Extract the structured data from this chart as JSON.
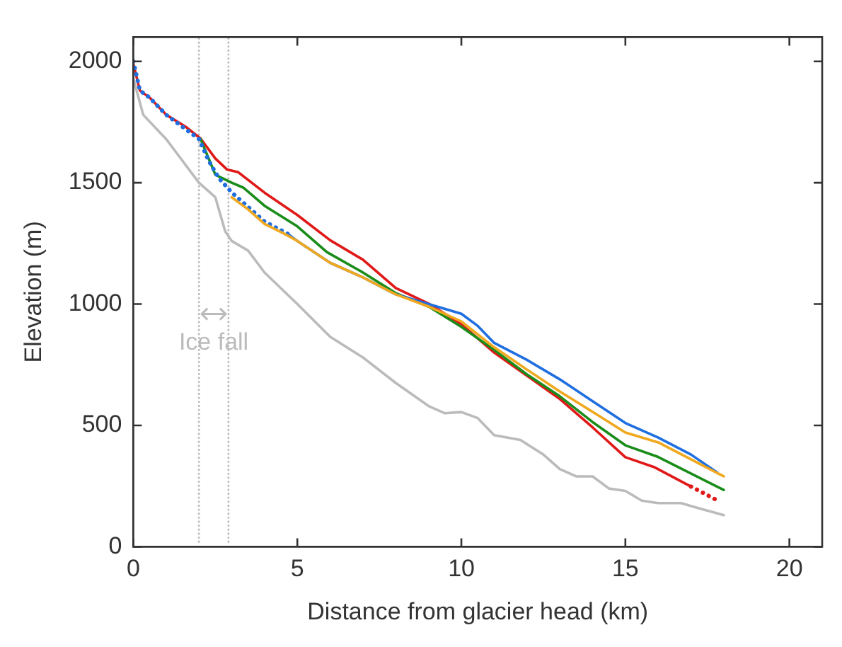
{
  "chart_data": {
    "type": "line",
    "xlabel": "Distance from glacier head (km)",
    "ylabel": "Elevation (m)",
    "xlim": [
      0,
      21
    ],
    "xticks": [
      0,
      5,
      10,
      15,
      20
    ],
    "ylim": [
      0,
      2100
    ],
    "yticks": [
      0,
      500,
      1000,
      1500,
      2000
    ],
    "grid": false,
    "legend": false,
    "marker": "none",
    "ref_lines": [
      {
        "axis": "x",
        "value": 2,
        "color": "#bbbbbb",
        "line_style": "dotted"
      },
      {
        "axis": "x",
        "value": 2.9,
        "color": "#bbbbbb",
        "line_style": "dotted"
      }
    ],
    "annotations": [
      "Ice fall"
    ],
    "series": [
      {
        "color": "#bbbbbb",
        "line_style": "solid",
        "x": [
          0,
          0.3,
          1,
          2,
          2.5,
          2.8,
          3,
          3.5,
          4,
          5,
          6,
          7,
          8,
          9,
          9.5,
          10,
          10.5,
          11,
          11.8,
          12.5,
          13,
          13.5,
          14,
          14.5,
          15,
          15.5,
          16,
          16.7,
          17.2,
          18
        ],
        "values": [
          1930,
          1780,
          1680,
          1500,
          1440,
          1300,
          1260,
          1220,
          1130,
          1000,
          865,
          780,
          675,
          580,
          550,
          555,
          530,
          460,
          440,
          380,
          320,
          290,
          290,
          240,
          230,
          190,
          180,
          180,
          160,
          130
        ]
      },
      {
        "color": "#f0a81e",
        "line_style": "solid",
        "x": [
          3,
          3.5,
          4,
          4.6,
          5,
          6,
          7,
          8,
          9,
          10,
          11,
          12,
          13,
          14,
          15,
          16,
          17,
          18
        ],
        "values": [
          1440,
          1390,
          1330,
          1290,
          1260,
          1170,
          1110,
          1040,
          990,
          928,
          822,
          730,
          640,
          556,
          471,
          430,
          360,
          290
        ]
      },
      {
        "color": "#1f6fe0",
        "line_style": "dotted",
        "x": [
          0,
          0.2,
          0.5,
          1,
          1.5,
          2,
          2.3,
          2.6,
          3,
          3.5,
          4,
          4.7
        ],
        "values": [
          2000,
          1880,
          1850,
          1780,
          1730,
          1680,
          1590,
          1520,
          1460,
          1400,
          1340,
          1290
        ]
      },
      {
        "color": "#1f6fe0",
        "line_style": "solid",
        "x": [
          4.7,
          5,
          6,
          7,
          8,
          9,
          10,
          10.5,
          11,
          12,
          13,
          14,
          15,
          16,
          17,
          17.8
        ],
        "values": [
          1290,
          1260,
          1170,
          1110,
          1040,
          1000,
          960,
          910,
          840,
          770,
          690,
          600,
          510,
          450,
          380,
          306
        ]
      },
      {
        "color": "#1a8c1a",
        "line_style": "solid",
        "x": [
          2.05,
          2.5,
          3,
          3.35,
          4,
          5,
          5.9,
          7,
          8,
          9,
          10,
          11,
          12,
          13,
          14,
          15,
          16,
          18
        ],
        "values": [
          1680,
          1533,
          1500,
          1480,
          1405,
          1320,
          1214,
          1130,
          1045,
          990,
          906,
          811,
          710,
          620,
          514,
          418,
          370,
          234
        ]
      },
      {
        "color": "#e01818",
        "line_style": "solid",
        "x": [
          0,
          0.2,
          0.5,
          1,
          1.6,
          2.05,
          2.5,
          2.86,
          3.2,
          4,
          5,
          6,
          7,
          8,
          9,
          10,
          11,
          12,
          13,
          14,
          15,
          15.9,
          17
        ],
        "values": [
          1990,
          1880,
          1850,
          1780,
          1730,
          1682,
          1600,
          1554,
          1543,
          1459,
          1367,
          1263,
          1183,
          1066,
          1002,
          917,
          800,
          705,
          609,
          492,
          369,
          327,
          248
        ]
      },
      {
        "color": "#e01818",
        "line_style": "dotted",
        "x": [
          17,
          17.4,
          17.8
        ],
        "values": [
          248,
          220,
          191
        ]
      }
    ]
  }
}
